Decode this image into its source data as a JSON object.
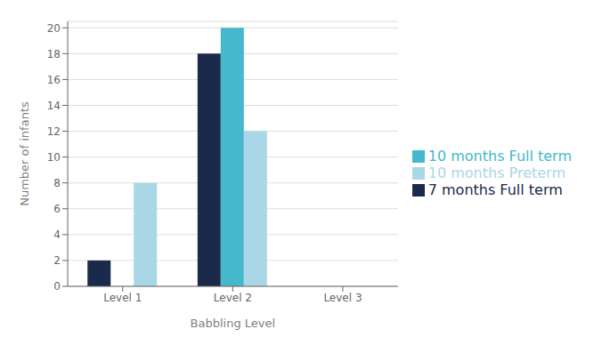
{
  "chart_data": {
    "type": "bar",
    "xlabel": "Babbling Level",
    "ylabel": "Number of infants",
    "categories": [
      "Level 1",
      "Level 2",
      "Level 3"
    ],
    "series": [
      {
        "name": "7 months Full term",
        "color": "#1b2a4a",
        "values": [
          2,
          18,
          0
        ]
      },
      {
        "name": "10 months Full term",
        "color": "#45b8cc",
        "values": [
          0,
          20,
          0
        ]
      },
      {
        "name": "10 months Preterm",
        "color": "#aad7e8",
        "values": [
          8,
          12,
          0
        ]
      }
    ],
    "ylim": [
      0,
      20.5
    ],
    "yticks": [
      0,
      2,
      4,
      6,
      8,
      10,
      12,
      14,
      16,
      18,
      20
    ],
    "grid": true,
    "legend": "right"
  }
}
